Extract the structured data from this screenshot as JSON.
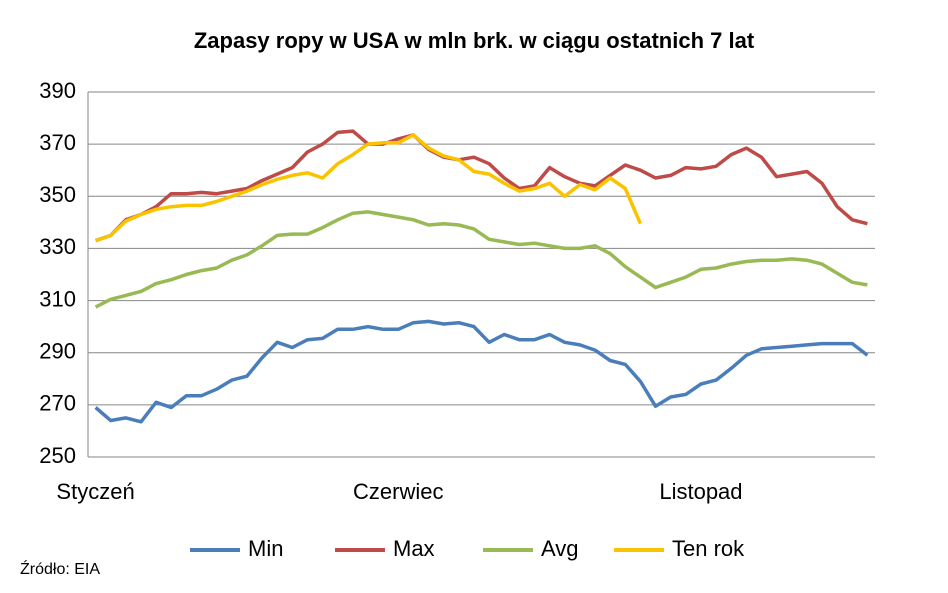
{
  "chart_data": {
    "type": "line",
    "title": "Zapasy ropy w USA w mln brk. w ciągu ostatnich 7 lat",
    "source": "Źródło: EIA",
    "categories": [
      "Styczeń",
      null,
      null,
      null,
      null,
      null,
      null,
      null,
      null,
      null,
      null,
      null,
      null,
      null,
      null,
      null,
      null,
      null,
      null,
      null,
      "Czerwiec",
      null,
      null,
      null,
      null,
      null,
      null,
      null,
      null,
      null,
      null,
      null,
      null,
      null,
      null,
      null,
      null,
      null,
      null,
      null,
      "Listopad",
      null,
      null,
      null,
      null,
      null,
      null,
      null,
      null,
      null,
      null,
      null
    ],
    "ylim": [
      250,
      390
    ],
    "yticks": [
      250,
      270,
      290,
      310,
      330,
      350,
      370,
      390
    ],
    "grid": true,
    "legend": "bottom",
    "series": [
      {
        "name": "Min",
        "color": "#4a7ebb",
        "values": [
          269,
          264,
          265,
          263.5,
          271,
          269,
          273.5,
          273.5,
          276,
          279.5,
          281,
          288,
          294,
          292,
          295,
          295.5,
          299,
          299,
          300,
          299,
          299,
          301.5,
          302,
          301,
          301.5,
          300,
          294,
          297,
          295,
          295,
          297,
          294,
          293,
          291,
          287,
          285.5,
          279,
          269.5,
          273,
          274,
          278,
          279.5,
          284,
          289,
          291.5,
          292,
          292.5,
          293,
          293.5,
          293.5,
          293.5,
          289
        ]
      },
      {
        "name": "Max",
        "color": "#be4b48",
        "values": [
          333,
          335,
          341,
          343,
          346,
          351,
          351,
          351.5,
          351,
          352,
          353,
          356,
          358.5,
          361,
          367,
          370,
          374.5,
          375,
          370,
          370,
          372,
          373.5,
          368,
          365,
          364,
          365,
          362.5,
          357,
          353,
          354,
          361,
          357.5,
          355,
          354,
          358,
          362,
          360,
          357,
          358,
          361,
          360.5,
          361.5,
          366,
          368.5,
          365,
          357.5,
          358.5,
          359.5,
          355,
          346,
          341,
          339.5
        ]
      },
      {
        "name": "Avg",
        "color": "#98b954",
        "values": [
          307.5,
          310.5,
          312,
          313.5,
          316.5,
          318,
          320,
          321.5,
          322.5,
          325.5,
          327.5,
          331,
          335,
          335.5,
          335.5,
          338,
          341,
          343.5,
          344,
          343,
          342,
          341,
          339,
          339.5,
          339,
          337.5,
          333.5,
          332.5,
          331.5,
          332,
          331,
          330,
          330,
          331,
          328,
          323,
          319,
          315,
          317,
          319,
          322,
          322.5,
          324,
          325,
          325.5,
          325.5,
          326,
          325.5,
          324,
          320.5,
          317,
          316
        ]
      },
      {
        "name": "Ten rok",
        "color": "#f9c300",
        "values": [
          333,
          335,
          340.5,
          343,
          345,
          346,
          346.5,
          346.5,
          348,
          350,
          352,
          354.5,
          356.5,
          358,
          359,
          357,
          362.5,
          366,
          370,
          370.5,
          370.5,
          373.5,
          368.5,
          365.5,
          364,
          359.5,
          358.5,
          355,
          352,
          353,
          355,
          350,
          354.5,
          352.5,
          357,
          353,
          339.5,
          null,
          null,
          null,
          null,
          null,
          null,
          null,
          null,
          null,
          null,
          null,
          null,
          null,
          null,
          null
        ]
      }
    ]
  }
}
